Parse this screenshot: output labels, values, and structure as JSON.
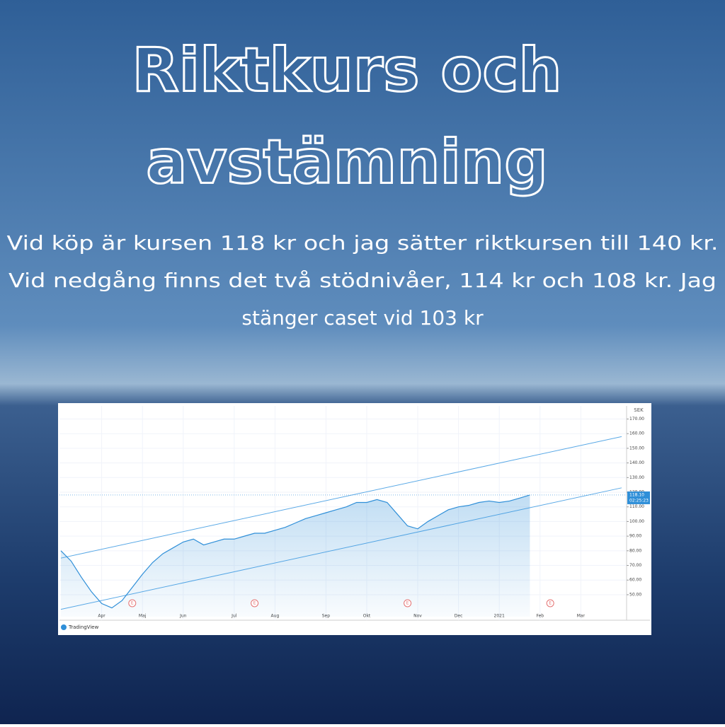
{
  "header": {
    "title_lines": [
      "Riktkurs och",
      "avstämning"
    ]
  },
  "body": {
    "lines": [
      "Vid köp är kursen 118 kr och jag sätter riktkursen till 140 kr.",
      "Vid nedgång finns det två stödnivåer, 114 kr och 108 kr. Jag",
      "stänger caset vid 103 kr"
    ]
  },
  "chart_data": {
    "type": "line",
    "currency": "SEK",
    "brand": "TradingView",
    "categories": [
      null,
      null,
      null,
      null,
      "Apr",
      null,
      null,
      null,
      "Maj",
      null,
      null,
      null,
      "Jun",
      null,
      null,
      null,
      null,
      "Jul",
      null,
      null,
      null,
      "Aug",
      null,
      null,
      null,
      null,
      "Sep",
      null,
      null,
      null,
      "Okt",
      null,
      null,
      null,
      null,
      "Nov",
      null,
      null,
      null,
      "Dec",
      null,
      null,
      null,
      "2021",
      null,
      null,
      null,
      "Feb",
      null,
      null,
      null,
      "Mar",
      null,
      null,
      null,
      null
    ],
    "values": [
      80,
      73,
      62,
      52,
      44,
      41,
      46,
      55,
      64,
      72,
      78,
      82,
      86,
      88,
      84,
      86,
      88,
      88,
      90,
      92,
      92,
      94,
      96,
      99,
      102,
      104,
      106,
      108,
      110,
      113,
      113,
      115,
      113,
      105,
      97,
      95,
      100,
      104,
      108,
      110,
      111,
      113,
      114,
      113,
      114,
      116,
      118.1,
      null,
      null,
      null,
      null,
      null,
      null,
      null,
      null,
      null
    ],
    "color": "#2f8fd8",
    "ylim": [
      35,
      177
    ],
    "yticks": [
      {
        "value": 50,
        "label": "50.00"
      },
      {
        "value": 60,
        "label": "60.00"
      },
      {
        "value": 70,
        "label": "70.00"
      },
      {
        "value": 80,
        "label": "80.00"
      },
      {
        "value": 90,
        "label": "90.00"
      },
      {
        "value": 100,
        "label": "100.00"
      },
      {
        "value": 110,
        "label": "110.00"
      },
      {
        "value": 120,
        "label": "120.00"
      },
      {
        "value": 130,
        "label": "130.00"
      },
      {
        "value": 140,
        "label": "140.00"
      },
      {
        "value": 150,
        "label": "150.00"
      },
      {
        "value": 160,
        "label": "160.00"
      },
      {
        "value": 170,
        "label": "170.00"
      }
    ],
    "grid": true,
    "price_label": {
      "value": 118.1,
      "label": "118.10"
    },
    "countdown": "02:25:23",
    "trendlines": [
      {
        "start": 75,
        "end": 158
      },
      {
        "start": 40,
        "end": 123
      }
    ],
    "events": [
      {
        "index": 7,
        "label": "E"
      },
      {
        "index": 19,
        "label": "E"
      },
      {
        "index": 34,
        "label": "E"
      },
      {
        "index": 48,
        "label": "E"
      }
    ]
  }
}
